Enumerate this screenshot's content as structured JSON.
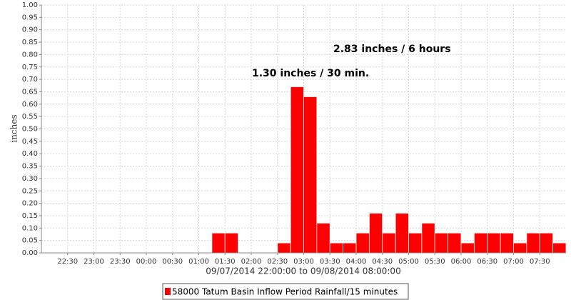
{
  "chart_data": {
    "type": "bar",
    "x_label": "09/07/2014 22:00:00 to 09/08/2014 08:00:00",
    "y_label": "inches",
    "annotations": [
      "2.83 inches / 6 hours",
      "1.30 inches / 30 min."
    ],
    "categories": [
      null,
      null,
      "22:30",
      null,
      "23:00",
      null,
      "23:30",
      null,
      "00:00",
      null,
      "00:30",
      null,
      "01:00",
      null,
      "01:30",
      null,
      "02:00",
      null,
      "02:30",
      null,
      "03:00",
      null,
      "03:30",
      null,
      "04:00",
      null,
      "04:30",
      null,
      "05:00",
      null,
      "05:30",
      null,
      "06:00",
      null,
      "06:30",
      null,
      "07:00",
      null,
      "07:30",
      null
    ],
    "series": [
      {
        "name": "58000 Tatum Basin Inflow Period Rainfall/15 minutes",
        "color": "#ff0000",
        "values": [
          0,
          0,
          0,
          0,
          0,
          0,
          0,
          0,
          0,
          0,
          0,
          0,
          0,
          0.08,
          0.08,
          0,
          0,
          0,
          0.04,
          0.67,
          0.63,
          0.12,
          0.04,
          0.04,
          0.08,
          0.16,
          0.08,
          0.16,
          0.08,
          0.12,
          0.08,
          0.08,
          0.04,
          0.08,
          0.08,
          0.08,
          0.04,
          0.08,
          0.08,
          0.04
        ]
      }
    ],
    "ylim": [
      0,
      1
    ],
    "yticks": [
      {
        "value": 0,
        "label": "0.00"
      },
      {
        "value": 0.05,
        "label": "0.05"
      },
      {
        "value": 0.1,
        "label": "0.10"
      },
      {
        "value": 0.15,
        "label": "0.15"
      },
      {
        "value": 0.2,
        "label": "0.20"
      },
      {
        "value": 0.25,
        "label": "0.25"
      },
      {
        "value": 0.3,
        "label": "0.30"
      },
      {
        "value": 0.35,
        "label": "0.35"
      },
      {
        "value": 0.4,
        "label": "0.40"
      },
      {
        "value": 0.45,
        "label": "0.45"
      },
      {
        "value": 0.5,
        "label": "0.50"
      },
      {
        "value": 0.55,
        "label": "0.55"
      },
      {
        "value": 0.6,
        "label": "0.60"
      },
      {
        "value": 0.65,
        "label": "0.65"
      },
      {
        "value": 0.7,
        "label": "0.70"
      },
      {
        "value": 0.75,
        "label": "0.75"
      },
      {
        "value": 0.8,
        "label": "0.80"
      },
      {
        "value": 0.85,
        "label": "0.85"
      },
      {
        "value": 0.9,
        "label": "0.90"
      },
      {
        "value": 0.95,
        "label": "0.95"
      },
      {
        "value": 1,
        "label": "1.00"
      }
    ],
    "grid": true
  }
}
